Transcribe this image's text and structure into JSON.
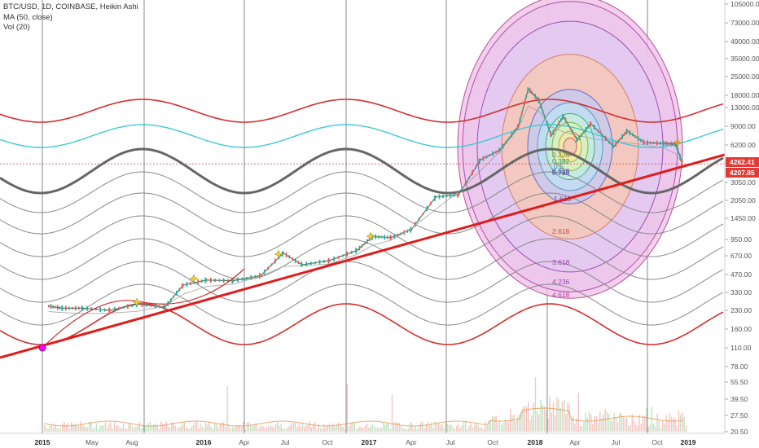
{
  "legend": {
    "symbol_line": "BTC/USD, 1D, COINBASE, Heikin Ashi",
    "ma_line": "MA (50, close)",
    "vol_line": "Vol (20)"
  },
  "chart_data": {
    "type": "line",
    "title": "BTC/USD, 1D, COINBASE, Heikin Ashi",
    "chart_kind": "candlestick (Heikin Ashi) with drawing overlays",
    "y_scale": "log",
    "grid": "vertical lines at year/quarter marks",
    "x_ticks": [
      "2015",
      "May",
      "Aug",
      "2016",
      "Apr",
      "Jul",
      "Oct",
      "2017",
      "Apr",
      "Jul",
      "Oct",
      "2018",
      "Apr",
      "Jul",
      "Oct",
      "2019"
    ],
    "y_ticks": [
      "105000.00",
      "73000.00",
      "49000.00",
      "35000.00",
      "25000.00",
      "18000.00",
      "13000.00",
      "9000.00",
      "6200.00",
      "3050.00",
      "2050.00",
      "1450.00",
      "950.00",
      "670.00",
      "470.00",
      "330.00",
      "230.00",
      "160.00",
      "110.00",
      "78.00",
      "55.50",
      "39.50",
      "27.50",
      "20.50"
    ],
    "price_labels": [
      {
        "text": "4262.41",
        "color": "#e53935"
      },
      {
        "text": "4207.85",
        "color": "#e53935"
      }
    ],
    "fib_circle_labels": [
      "0.236",
      "0.382",
      "0.5",
      "0.618",
      "0.786",
      "1.618",
      "2.618",
      "3.618",
      "4.236",
      "4.618"
    ],
    "series": [
      {
        "values": [
          {
            "x": "2015-01-15",
            "y": 250
          },
          {
            "x": "2015-02-15",
            "y": 240
          },
          {
            "x": "2015-04-01",
            "y": 240
          },
          {
            "x": "2015-06-01",
            "y": 230
          },
          {
            "x": "2015-08-01",
            "y": 260
          },
          {
            "x": "2015-10-01",
            "y": 245
          },
          {
            "x": "2015-11-10",
            "y": 380
          },
          {
            "x": "2016-01-01",
            "y": 420
          },
          {
            "x": "2016-03-01",
            "y": 415
          },
          {
            "x": "2016-05-01",
            "y": 460
          },
          {
            "x": "2016-06-20",
            "y": 720
          },
          {
            "x": "2016-08-01",
            "y": 570
          },
          {
            "x": "2016-10-01",
            "y": 620
          },
          {
            "x": "2016-12-01",
            "y": 760
          },
          {
            "x": "2017-01-05",
            "y": 1000
          },
          {
            "x": "2017-02-15",
            "y": 980
          },
          {
            "x": "2017-04-01",
            "y": 1150
          },
          {
            "x": "2017-05-25",
            "y": 2200
          },
          {
            "x": "2017-07-15",
            "y": 2300
          },
          {
            "x": "2017-09-01",
            "y": 4600
          },
          {
            "x": "2017-10-15",
            "y": 5600
          },
          {
            "x": "2017-11-25",
            "y": 9000
          },
          {
            "x": "2017-12-17",
            "y": 19000
          },
          {
            "x": "2018-01-10",
            "y": 15000
          },
          {
            "x": "2018-02-06",
            "y": 7500
          },
          {
            "x": "2018-03-05",
            "y": 11000
          },
          {
            "x": "2018-04-05",
            "y": 6800
          },
          {
            "x": "2018-05-05",
            "y": 9500
          },
          {
            "x": "2018-06-25",
            "y": 6000
          },
          {
            "x": "2018-07-25",
            "y": 8200
          },
          {
            "x": "2018-09-01",
            "y": 6500
          },
          {
            "x": "2018-10-15",
            "y": 6400
          },
          {
            "x": "2018-11-10",
            "y": 6300
          },
          {
            "x": "2018-11-25",
            "y": 4262.41
          }
        ]
      }
    ]
  }
}
